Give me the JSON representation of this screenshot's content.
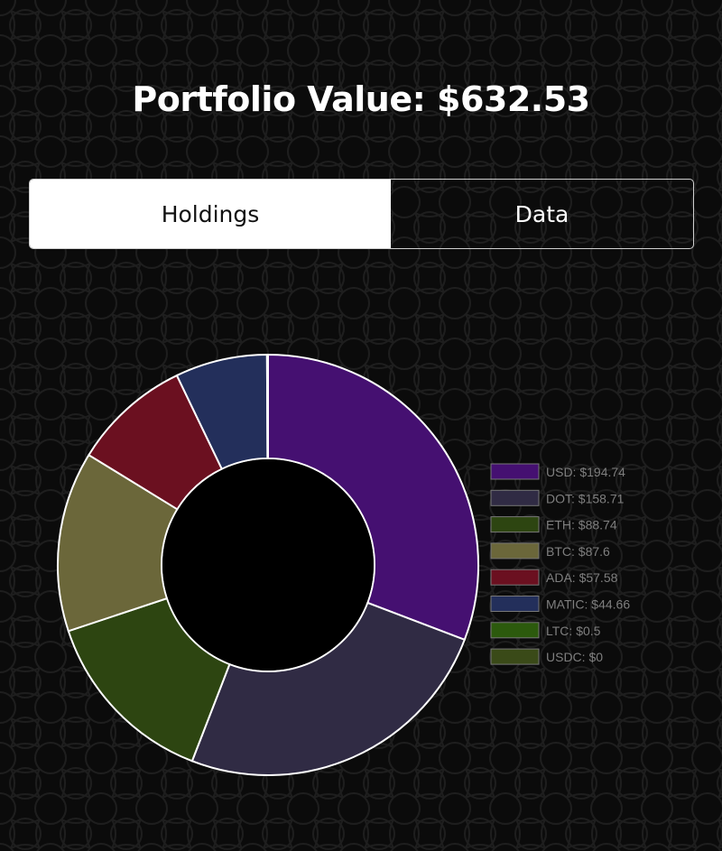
{
  "header": {
    "title": "Portfolio Value: $632.53"
  },
  "tabs": [
    {
      "label": "Holdings",
      "active": true
    },
    {
      "label": "Data",
      "active": false
    }
  ],
  "colors": {
    "background": "#0b0b0b",
    "pattern": "#1f1f1f",
    "slice_border": "#ffffff"
  },
  "chart_data": {
    "type": "pie",
    "donut": true,
    "legend_position": "right",
    "categories": [
      "USD",
      "DOT",
      "ETH",
      "BTC",
      "ADA",
      "MATIC",
      "LTC",
      "USDC"
    ],
    "values": [
      194.74,
      158.71,
      88.74,
      87.6,
      57.58,
      44.66,
      0.5,
      0
    ],
    "legend_labels": [
      "USD: $194.74",
      "DOT: $158.71",
      "ETH: $88.74",
      "BTC: $87.6",
      "ADA: $57.58",
      "MATIC: $44.66",
      "LTC: $0.5",
      "USDC: $0"
    ],
    "colors": [
      "#451071",
      "#302b44",
      "#2d4511",
      "#6b673a",
      "#6b1020",
      "#232f5b",
      "#2c5a0d",
      "#3a4a18"
    ]
  }
}
